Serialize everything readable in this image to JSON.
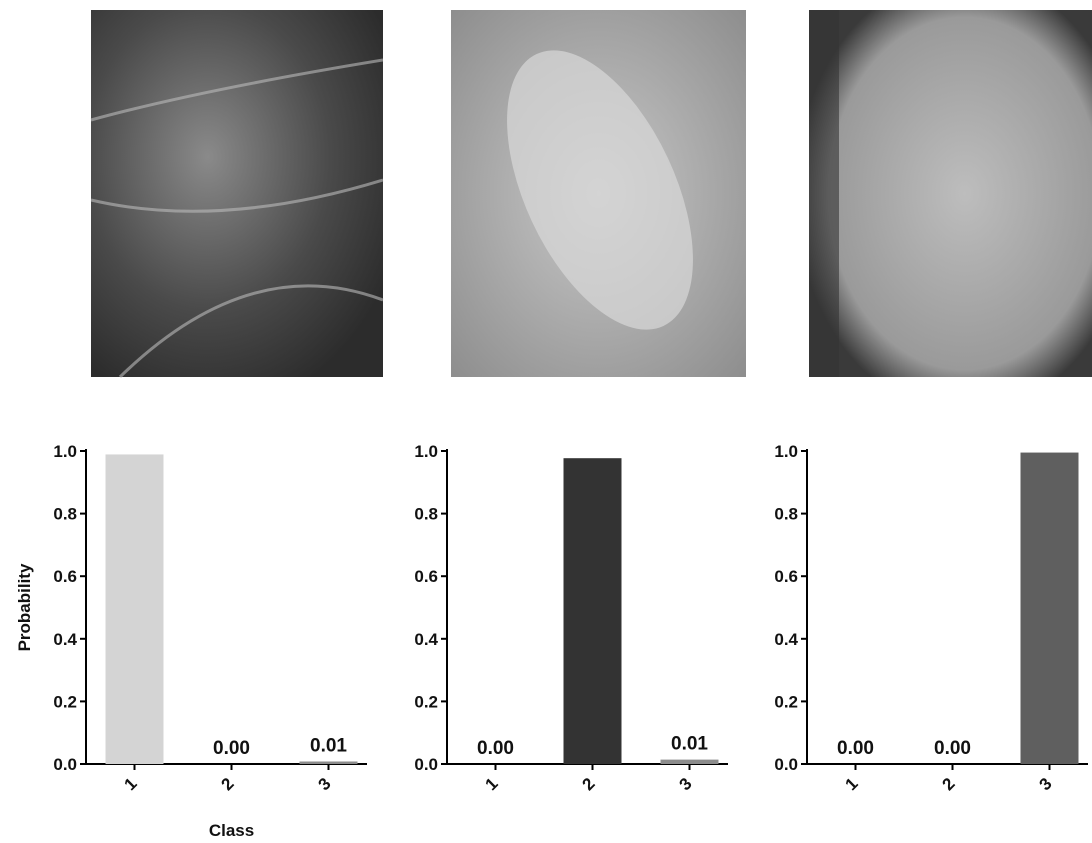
{
  "chart_data": [
    {
      "type": "bar",
      "ylabel": "Probability",
      "xlabel": "Class",
      "categories": [
        "1",
        "2",
        "3"
      ],
      "values": [
        0.989,
        0,
        0.008
      ],
      "value_labels": [
        null,
        "0.00",
        "0.01"
      ],
      "colors": [
        "#d4d4d4",
        "#333333",
        "#8c8c8c"
      ],
      "ylim": [
        0,
        1
      ],
      "yticks": [
        {
          "value": 0,
          "label": "0.0"
        },
        {
          "value": 0.2,
          "label": "0.2"
        },
        {
          "value": 0.4,
          "label": "0.4"
        },
        {
          "value": 0.6,
          "label": "0.6"
        },
        {
          "value": 0.8,
          "label": "0.8"
        },
        {
          "value": 1,
          "label": "1.0"
        }
      ]
    },
    {
      "type": "bar",
      "categories": [
        "1",
        "2",
        "3"
      ],
      "values": [
        0,
        0.977,
        0.014
      ],
      "value_labels": [
        "0.00",
        null,
        "0.01"
      ],
      "colors": [
        "#d4d4d4",
        "#333333",
        "#8c8c8c"
      ],
      "ylim": [
        0,
        1
      ],
      "yticks": [
        {
          "value": 0,
          "label": "0.0"
        },
        {
          "value": 0.2,
          "label": "0.2"
        },
        {
          "value": 0.4,
          "label": "0.4"
        },
        {
          "value": 0.6,
          "label": "0.6"
        },
        {
          "value": 0.8,
          "label": "0.8"
        },
        {
          "value": 1,
          "label": "1.0"
        }
      ]
    },
    {
      "type": "bar",
      "categories": [
        "1",
        "2",
        "3"
      ],
      "values": [
        0,
        0,
        0.995
      ],
      "value_labels": [
        "0.00",
        "0.00",
        null
      ],
      "colors": [
        "#d4d4d4",
        "#333333",
        "#5f5f5f"
      ],
      "ylim": [
        0,
        1
      ],
      "yticks": [
        {
          "value": 0,
          "label": "0.0"
        },
        {
          "value": 0.2,
          "label": "0.2"
        },
        {
          "value": 0.4,
          "label": "0.4"
        },
        {
          "value": 0.6,
          "label": "0.6"
        },
        {
          "value": 0.8,
          "label": "0.8"
        },
        {
          "value": 1,
          "label": "1.0"
        }
      ]
    }
  ]
}
